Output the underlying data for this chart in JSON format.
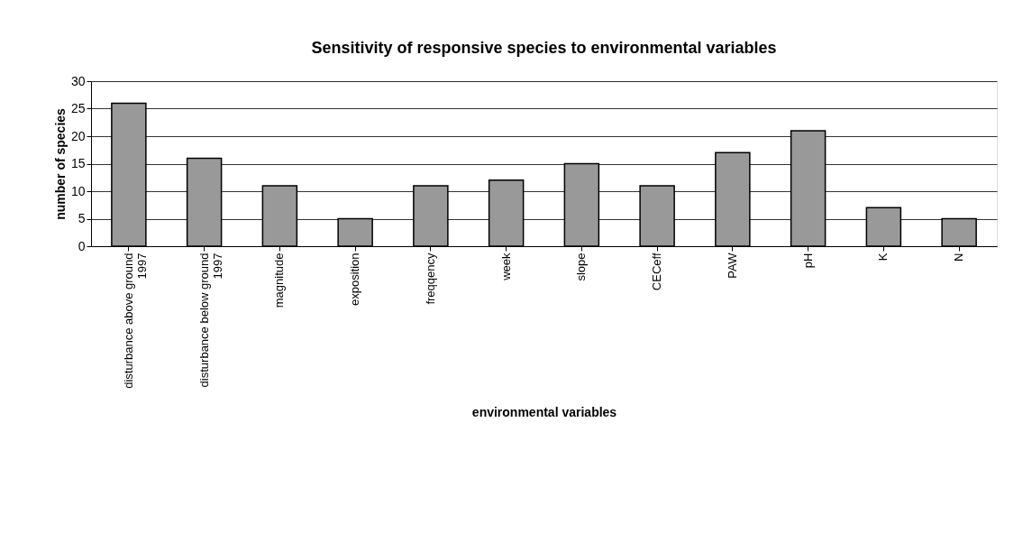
{
  "chart_data": {
    "type": "bar",
    "title": "Sensitivity of responsive species to environmental variables",
    "xlabel": "environmental variables",
    "ylabel": "number of species",
    "categories": [
      "disturbance above ground 1997",
      "disturbance below ground 1997",
      "magnitude",
      "exposition",
      "freqqency",
      "week",
      "slope",
      "CECeff",
      "PAW",
      "pH",
      "K",
      "N"
    ],
    "values": [
      26,
      16,
      11,
      5,
      11,
      12,
      15,
      11,
      17,
      21,
      7,
      5
    ],
    "color": "#999999",
    "ylim": [
      0,
      30
    ],
    "yticks": [
      0,
      5,
      10,
      15,
      20,
      25,
      30
    ],
    "grid": "y"
  }
}
